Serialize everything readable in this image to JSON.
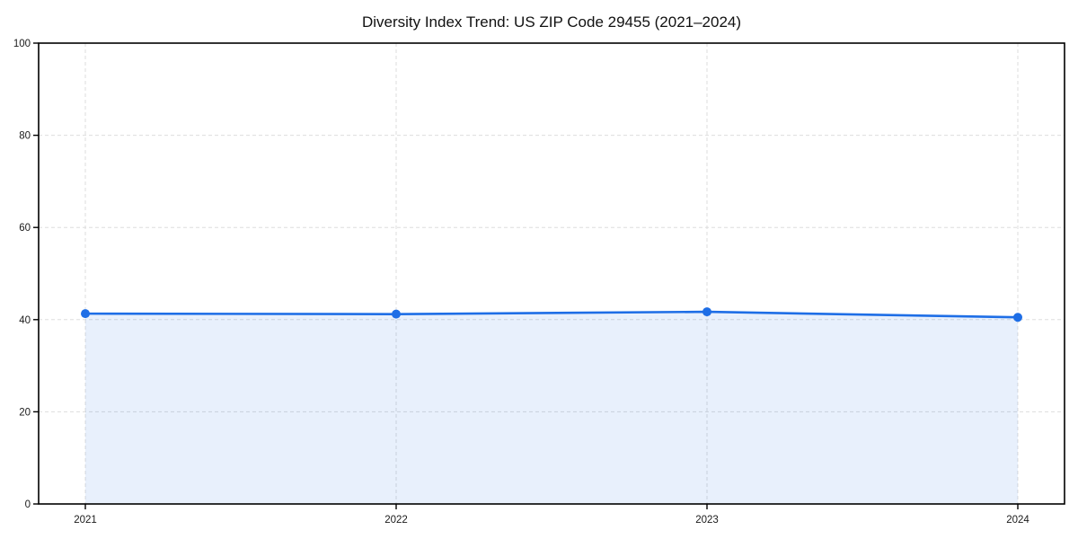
{
  "figure": {
    "background": "#ffffff"
  },
  "chart_data": {
    "type": "area",
    "title": "Diversity Index Trend: US ZIP Code 29455 (2021–2024)",
    "x": [
      "2021",
      "2022",
      "2023",
      "2024"
    ],
    "values": [
      41.3,
      41.2,
      41.7,
      40.5
    ],
    "xlabel": "",
    "ylabel": "",
    "ylim": [
      0,
      100
    ],
    "yticks": [
      0,
      20,
      40,
      60,
      80,
      100
    ],
    "grid": true,
    "grid_style": "dashed",
    "legend_position": "none",
    "colors": {
      "line": "#1e6ee6",
      "marker": "#1e6ee6",
      "fill": "#1e6ee6",
      "fill_opacity": 0.1,
      "grid": "#dddddd",
      "spine": "#000000",
      "tick_text": "#1a1a1a",
      "title_text": "#111111"
    }
  }
}
